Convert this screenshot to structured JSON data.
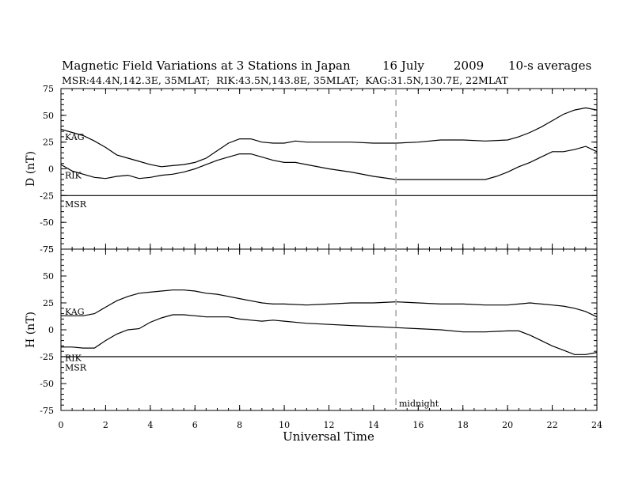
{
  "chart_data": {
    "type": "line",
    "title": "Magnetic Field Variations at 3 Stations in Japan",
    "date": "16 July",
    "year": "2009",
    "averaging": "10-s averages",
    "subtitle": "MSR:44.4N,142.3E, 35MLAT;  RIK:43.5N,143.8E, 35MLAT;  KAG:31.5N,130.7E, 22MLAT",
    "xlabel": "Universal Time",
    "xlim": [
      0,
      24
    ],
    "xticks": [
      0,
      2,
      4,
      6,
      8,
      10,
      12,
      14,
      16,
      18,
      20,
      22,
      24
    ],
    "annotation": {
      "label": "midnight",
      "x": 15
    },
    "panels": [
      {
        "ylabel": "D (nT)",
        "ylim": [
          -75,
          75
        ],
        "yticks": [
          75,
          50,
          25,
          0,
          -25,
          -50,
          -75
        ],
        "series": [
          {
            "name": "KAG",
            "x": [
              0,
              0.5,
              1,
              1.5,
              2,
              2.5,
              3,
              3.5,
              4,
              4.5,
              5,
              5.5,
              6,
              6.5,
              7,
              7.5,
              8,
              8.5,
              9,
              9.5,
              10,
              10.5,
              11,
              12,
              13,
              14,
              15,
              16,
              17,
              18,
              19,
              20,
              20.5,
              21,
              21.5,
              22,
              22.5,
              23,
              23.5,
              24
            ],
            "values": [
              37,
              34,
              31,
              26,
              20,
              13,
              10,
              7,
              4,
              2,
              3,
              4,
              6,
              10,
              17,
              24,
              28,
              28,
              25,
              24,
              24,
              26,
              25,
              25,
              25,
              24,
              24,
              25,
              27,
              27,
              26,
              27,
              30,
              34,
              39,
              45,
              51,
              55,
              57,
              55
            ]
          },
          {
            "name": "RIK",
            "x": [
              0,
              0.5,
              1,
              1.5,
              2,
              2.5,
              3,
              3.5,
              4,
              4.5,
              5,
              5.5,
              6,
              6.5,
              7,
              7.5,
              8,
              8.5,
              9,
              9.5,
              10,
              10.5,
              11,
              12,
              13,
              14,
              15,
              16,
              17,
              18,
              19,
              19.5,
              20,
              20.5,
              21,
              21.5,
              22,
              22.5,
              23,
              23.5,
              24
            ],
            "values": [
              4,
              -2,
              -5,
              -8,
              -9,
              -7,
              -6,
              -9,
              -8,
              -6,
              -5,
              -3,
              0,
              4,
              8,
              11,
              14,
              14,
              11,
              8,
              6,
              6,
              4,
              0,
              -3,
              -7,
              -10,
              -10,
              -10,
              -10,
              -10,
              -7,
              -3,
              2,
              6,
              11,
              16,
              16,
              18,
              21,
              16
            ]
          },
          {
            "name": "MSR",
            "x": [
              0,
              24
            ],
            "values": [
              -25,
              -25
            ]
          }
        ]
      },
      {
        "ylabel": "H (nT)",
        "ylim": [
          -75,
          75
        ],
        "yticks": [
          75,
          50,
          25,
          0,
          -25,
          -50,
          -75
        ],
        "series": [
          {
            "name": "KAG",
            "x": [
              0,
              0.5,
              1,
              1.5,
              2,
              2.5,
              3,
              3.5,
              4,
              4.5,
              5,
              5.5,
              6,
              6.5,
              7,
              7.5,
              8,
              8.5,
              9,
              9.5,
              10,
              11,
              12,
              13,
              14,
              15,
              16,
              17,
              18,
              19,
              20,
              20.5,
              21,
              21.5,
              22,
              22.5,
              23,
              23.5,
              24
            ],
            "values": [
              13,
              13,
              13,
              15,
              21,
              27,
              31,
              34,
              35,
              36,
              37,
              37,
              36,
              34,
              33,
              31,
              29,
              27,
              25,
              24,
              24,
              23,
              24,
              25,
              25,
              26,
              25,
              24,
              24,
              23,
              23,
              24,
              25,
              24,
              23,
              22,
              20,
              17,
              12
            ]
          },
          {
            "name": "RIK",
            "x": [
              0,
              0.5,
              1,
              1.5,
              2,
              2.5,
              3,
              3.5,
              4,
              4.5,
              5,
              5.5,
              6,
              6.5,
              7,
              7.5,
              8,
              8.5,
              9,
              9.5,
              10,
              11,
              12,
              13,
              14,
              15,
              16,
              17,
              18,
              19,
              20,
              20.5,
              21,
              21.5,
              22,
              22.5,
              23,
              23.5,
              24
            ],
            "values": [
              -16,
              -16,
              -17,
              -17,
              -10,
              -4,
              0,
              1,
              7,
              11,
              14,
              14,
              13,
              12,
              12,
              12,
              10,
              9,
              8,
              9,
              8,
              6,
              5,
              4,
              3,
              2,
              1,
              0,
              -2,
              -2,
              -1,
              -1,
              -5,
              -10,
              -15,
              -19,
              -23,
              -23,
              -21
            ]
          },
          {
            "name": "MSR",
            "x": [
              0,
              24
            ],
            "values": [
              -25,
              -25
            ]
          }
        ]
      }
    ],
    "label_positions": {
      "top": {
        "KAG": 30,
        "RIK": -6,
        "MSR": -33
      },
      "bottom": {
        "KAG": 17,
        "RIK": -26,
        "MSR": -35
      }
    }
  }
}
